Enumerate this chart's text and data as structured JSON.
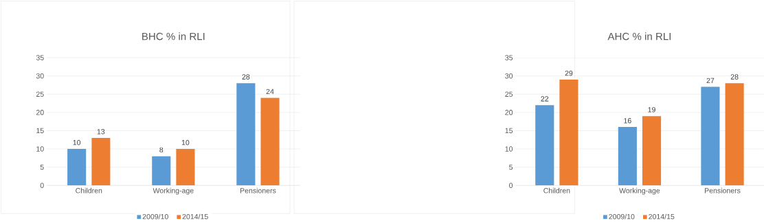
{
  "chart_data": [
    {
      "type": "bar",
      "title": "BHC % in RLI",
      "categories": [
        "Children",
        "Working-age",
        "Pensioners"
      ],
      "series": [
        {
          "name": "2009/10",
          "color": "#5b9bd5",
          "values": [
            10,
            8,
            28
          ]
        },
        {
          "name": "2014/15",
          "color": "#ed7d31",
          "values": [
            13,
            10,
            24
          ]
        }
      ],
      "ylim": [
        0,
        35
      ],
      "yticks": [
        0,
        5,
        10,
        15,
        20,
        25,
        30,
        35
      ],
      "grid": "y",
      "legend": "bottom",
      "data_labels": true
    },
    {
      "type": "bar",
      "title": "AHC % in RLI",
      "categories": [
        "Children",
        "Working-age",
        "Pensioners"
      ],
      "series": [
        {
          "name": "2009/10",
          "color": "#5b9bd5",
          "values": [
            22,
            16,
            27
          ]
        },
        {
          "name": "2014/15",
          "color": "#ed7d31",
          "values": [
            29,
            19,
            28
          ]
        }
      ],
      "ylim": [
        0,
        35
      ],
      "yticks": [
        0,
        5,
        10,
        15,
        20,
        25,
        30,
        35
      ],
      "grid": "y",
      "legend": "bottom",
      "data_labels": true
    }
  ]
}
